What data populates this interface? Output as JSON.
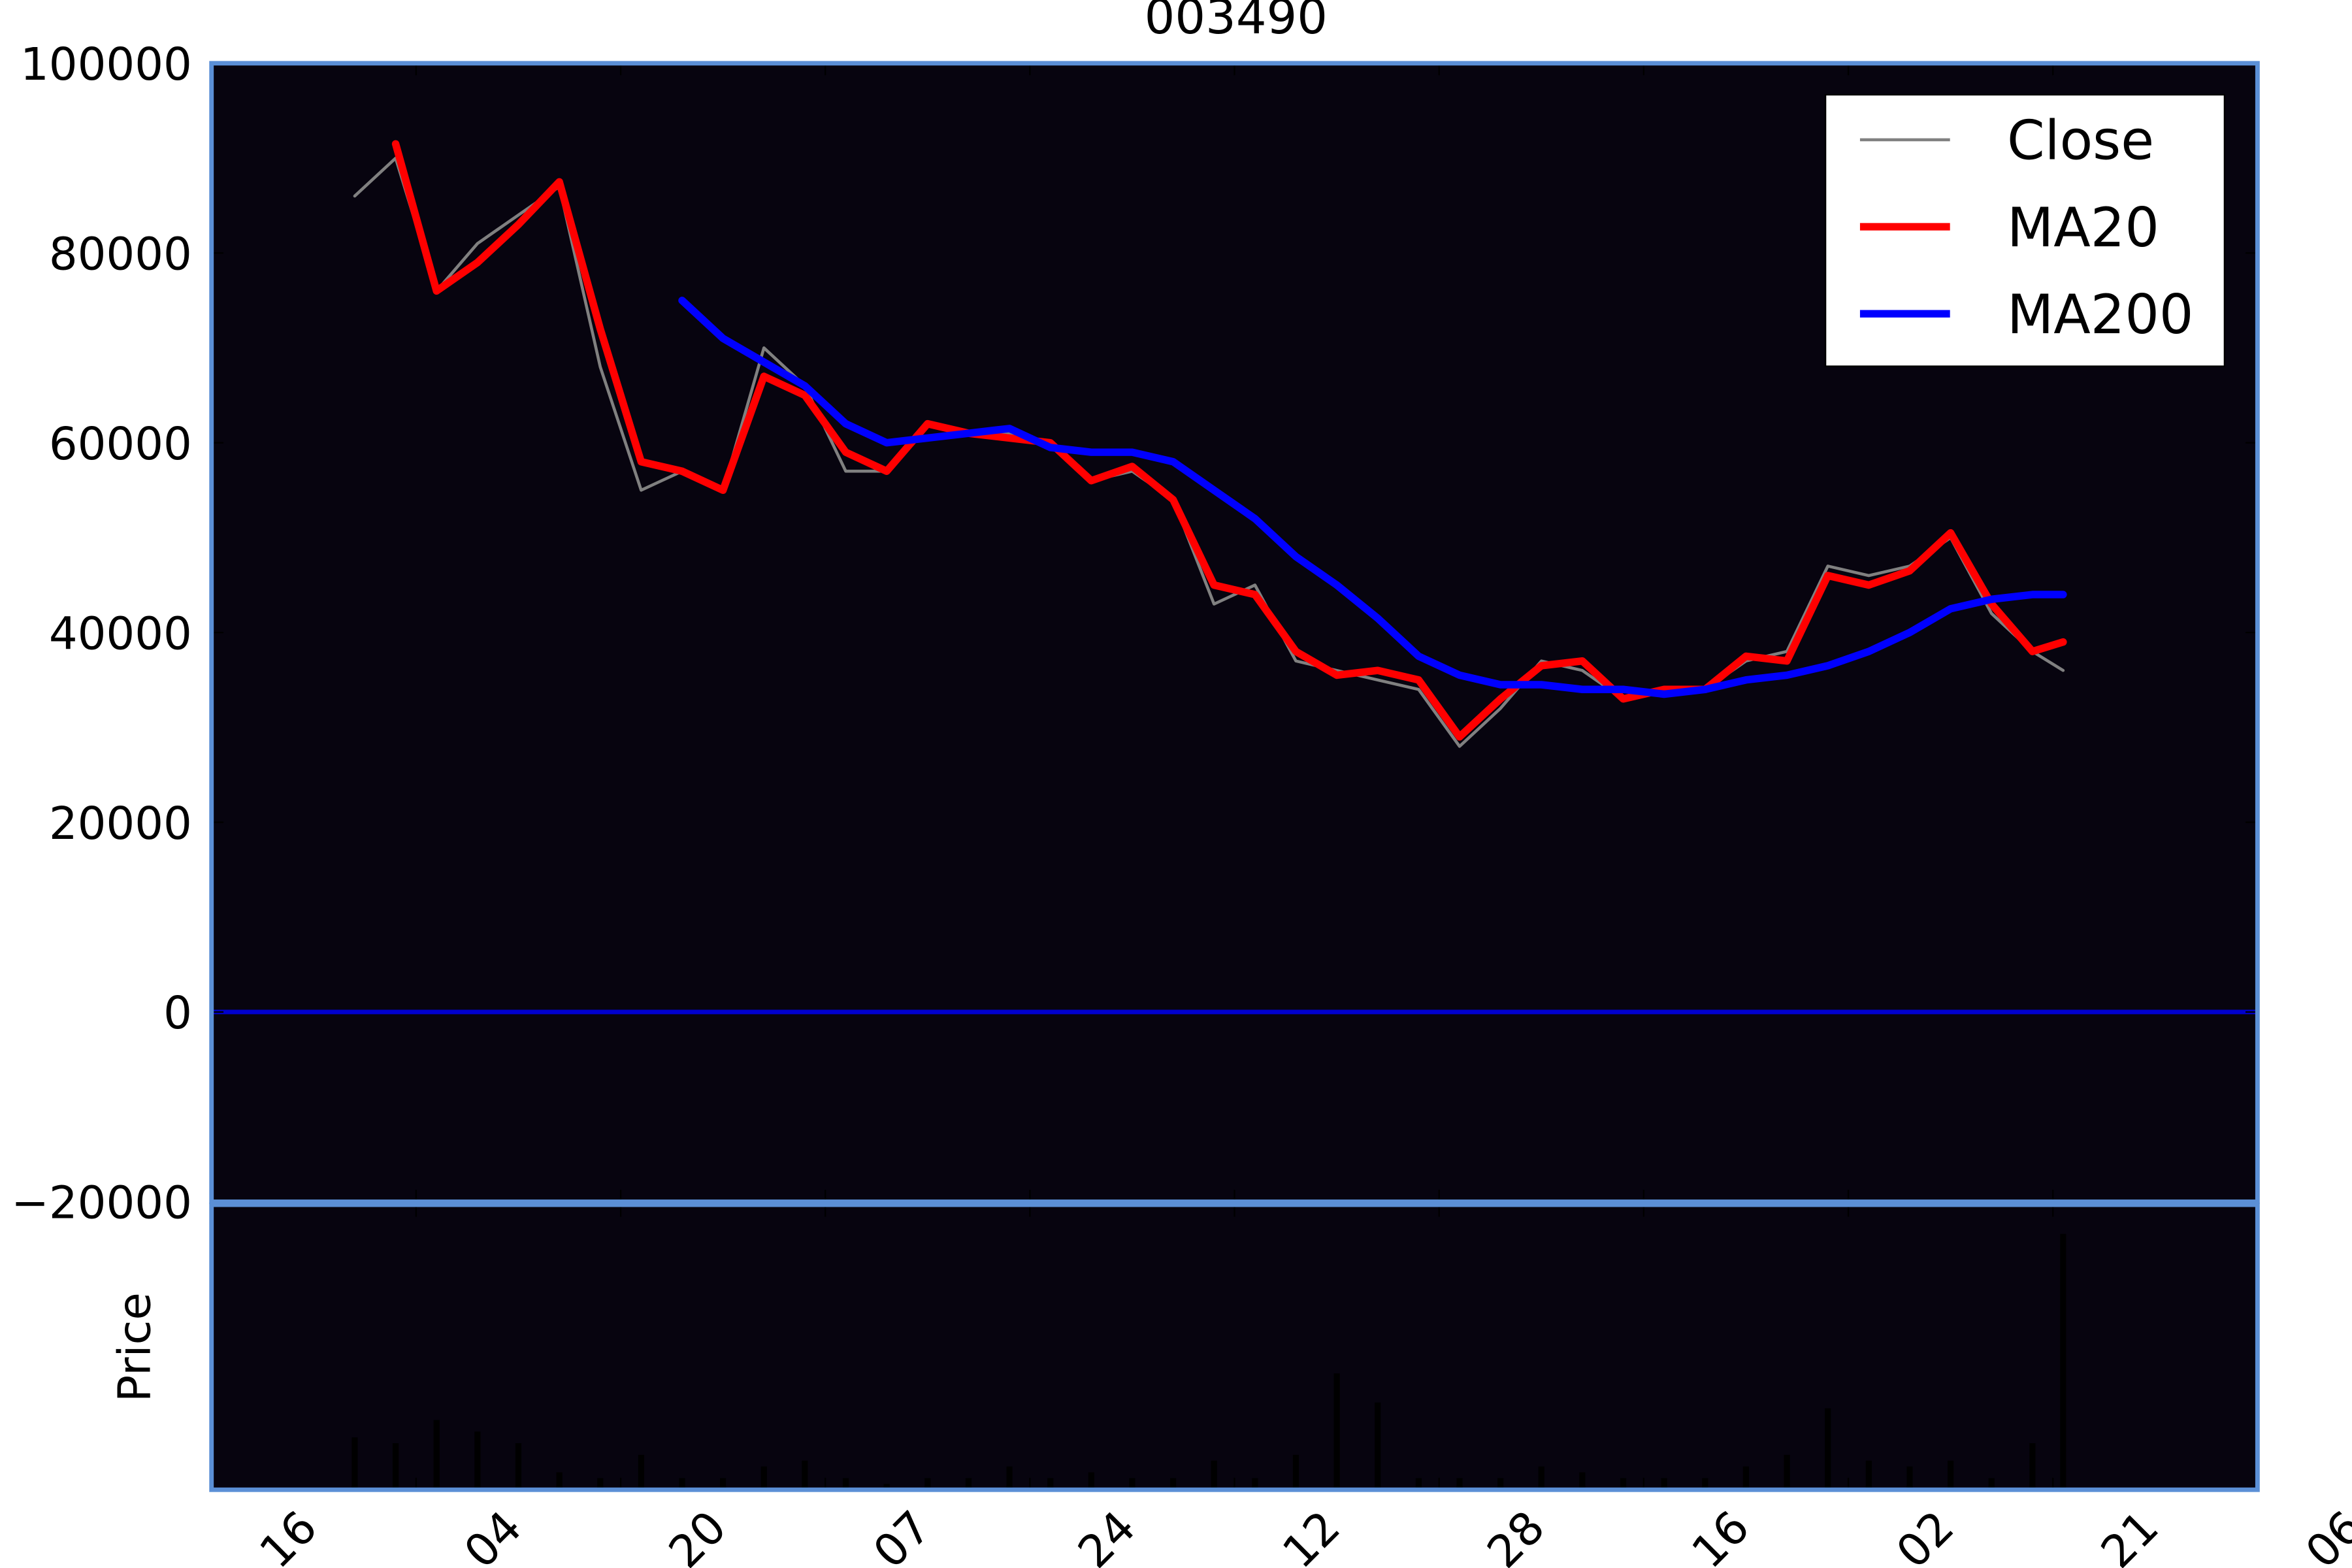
{
  "chart_data": [
    {
      "type": "line",
      "title": "003490",
      "x": [
        0.7,
        0.9,
        1.1,
        1.3,
        1.5,
        1.7,
        1.9,
        2.1,
        2.3,
        2.5,
        2.7,
        2.9,
        3.1,
        3.3,
        3.5,
        3.7,
        3.9,
        4.1,
        4.3,
        4.5,
        4.7,
        4.9,
        5.1,
        5.3,
        5.5,
        5.7,
        5.9,
        6.1,
        6.3,
        6.5,
        6.7,
        6.9,
        7.1,
        7.3,
        7.5,
        7.7,
        7.9,
        8.1,
        8.3,
        8.5,
        8.7,
        8.9,
        9.05
      ],
      "series": [
        {
          "name": "Close",
          "color": "#808080",
          "width": 2,
          "values": [
            86000,
            90000,
            76000,
            81000,
            84000,
            87000,
            68000,
            55000,
            57000,
            55000,
            70000,
            66000,
            57000,
            57000,
            62000,
            61000,
            61000,
            60000,
            56000,
            57000,
            54000,
            43000,
            45000,
            37000,
            36000,
            35000,
            34000,
            28000,
            32000,
            37000,
            36000,
            33000,
            34000,
            34000,
            37000,
            38000,
            47000,
            46000,
            47000,
            50000,
            42000,
            38000,
            36000
          ]
        },
        {
          "name": "MA20",
          "color": "#ff0000",
          "width": 5,
          "values": [
            null,
            91500,
            76000,
            79000,
            83000,
            87500,
            72000,
            58000,
            57000,
            55000,
            67000,
            65000,
            59000,
            57000,
            62000,
            61000,
            60500,
            60000,
            56000,
            57500,
            54000,
            45000,
            44000,
            38000,
            35500,
            36000,
            35000,
            29000,
            33000,
            36500,
            37000,
            33000,
            34000,
            34000,
            37500,
            37000,
            46000,
            45000,
            46500,
            50500,
            43000,
            38000,
            39000
          ]
        },
        {
          "name": "MA200",
          "color": "#0000ff",
          "width": 5,
          "values": [
            null,
            null,
            null,
            null,
            null,
            null,
            null,
            null,
            75000,
            71000,
            68500,
            66000,
            62000,
            60000,
            60500,
            61000,
            61500,
            59500,
            59000,
            59000,
            58000,
            55000,
            52000,
            48000,
            45000,
            41500,
            37500,
            35500,
            34500,
            34500,
            34000,
            34000,
            33500,
            34000,
            35000,
            35500,
            36500,
            38000,
            40000,
            42500,
            43500,
            44000,
            44000
          ]
        }
      ],
      "hlines": [
        {
          "value": 0,
          "color": "#0000cd"
        }
      ],
      "xlim": [
        0,
        10
      ],
      "ylim": [
        -20000,
        100000
      ],
      "yticks": [
        {
          "value": -20000,
          "label": "−20000"
        },
        0,
        20000,
        40000,
        60000,
        80000,
        100000
      ],
      "legend": "upper right",
      "background": "#07040f"
    },
    {
      "type": "bar",
      "ylabel": "Price",
      "x": [
        0.7,
        0.9,
        1.1,
        1.3,
        1.5,
        1.7,
        1.9,
        2.1,
        2.3,
        2.5,
        2.7,
        2.9,
        3.1,
        3.3,
        3.5,
        3.7,
        3.9,
        4.1,
        4.3,
        4.5,
        4.7,
        4.9,
        5.1,
        5.3,
        5.5,
        5.7,
        5.9,
        6.1,
        6.3,
        6.5,
        6.7,
        6.9,
        7.1,
        7.3,
        7.5,
        7.7,
        7.9,
        8.1,
        8.3,
        8.5,
        8.7,
        8.9,
        9.05
      ],
      "values": [
        0.9,
        0.8,
        1.2,
        1.0,
        0.8,
        0.3,
        0.2,
        0.6,
        0.2,
        0.2,
        0.4,
        0.5,
        0.2,
        0.1,
        0.2,
        0.2,
        0.4,
        0.2,
        0.3,
        0.2,
        0.2,
        0.5,
        0.2,
        0.6,
        2.0,
        1.5,
        0.2,
        0.2,
        0.2,
        0.4,
        0.3,
        0.2,
        0.2,
        0.2,
        0.4,
        0.6,
        1.4,
        0.5,
        0.4,
        0.5,
        0.2,
        0.8,
        4.4
      ],
      "color": "#000000",
      "xlim": [
        0,
        10
      ],
      "ylim": [
        0,
        4.9
      ],
      "xticks": [
        {
          "value": 0,
          "label": "16"
        },
        {
          "value": 1,
          "label": "04"
        },
        {
          "value": 2,
          "label": "20"
        },
        {
          "value": 3,
          "label": "07"
        },
        {
          "value": 4,
          "label": "24"
        },
        {
          "value": 5,
          "label": "12"
        },
        {
          "value": 6,
          "label": "28"
        },
        {
          "value": 7,
          "label": "16"
        },
        {
          "value": 8,
          "label": "02"
        },
        {
          "value": 9,
          "label": "21"
        },
        {
          "value": 10,
          "label": "06"
        }
      ],
      "background": "#07040f"
    }
  ]
}
